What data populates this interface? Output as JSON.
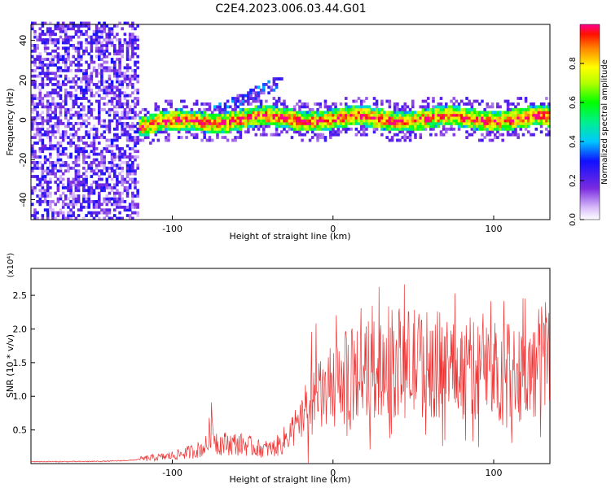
{
  "figure_title": "C2E4.2023.006.03.44.G01",
  "colors": {
    "snr_line": "#ee3333",
    "axis": "#000000",
    "background": "#ffffff"
  },
  "chart_data": [
    {
      "type": "heatmap",
      "xlabel": "Height of straight line (km)",
      "ylabel": "Frequency (Hz)",
      "xlim": [
        -188,
        135
      ],
      "ylim": [
        -50,
        48
      ],
      "x_ticks": [
        -100,
        0,
        100
      ],
      "x_tick_labels": [
        "-100",
        "0",
        "100"
      ],
      "y_ticks": [
        40,
        20,
        0,
        -20,
        -40
      ],
      "y_tick_labels": [
        "40",
        "20",
        "0",
        "-20",
        "-40"
      ],
      "colorbar": {
        "label": "Normalized spectral amplitude",
        "range": [
          0,
          1
        ],
        "ticks": [
          0.0,
          0.2,
          0.4,
          0.6,
          0.8
        ],
        "tick_labels": [
          "0.0",
          "0.2",
          "0.4",
          "0.6",
          "0.8"
        ],
        "colormap": "rainbow"
      },
      "features": [
        {
          "region": "noise",
          "x_range": [
            -188,
            -122
          ],
          "y_range": [
            -50,
            48
          ],
          "amplitude": [
            0.05,
            0.3
          ]
        },
        {
          "region": "trace",
          "x_range": [
            -122,
            135
          ],
          "center_freq_hz": 0,
          "width_hz": 10,
          "amplitude": [
            0.3,
            1.0
          ]
        },
        {
          "region": "diagonal-branch",
          "x_range": [
            -75,
            -30
          ],
          "freq_hz": [
            3,
            20
          ],
          "amplitude": [
            0.1,
            0.4
          ]
        }
      ],
      "grid": false
    },
    {
      "type": "line",
      "xlabel": "Height of straight line (km)",
      "ylabel": "SNR (10 * v/v)",
      "y_multiplier": "(x10⁴)",
      "xlim": [
        -188,
        135
      ],
      "ylim": [
        0,
        2.9
      ],
      "x_ticks": [
        -100,
        0,
        100
      ],
      "x_tick_labels": [
        "-100",
        "0",
        "100"
      ],
      "y_ticks": [
        0.5,
        1.0,
        1.5,
        2.0,
        2.5
      ],
      "y_tick_labels": [
        "0.5",
        "1.0",
        "1.5",
        "2.0",
        "2.5"
      ],
      "grid": false,
      "series": [
        {
          "x": [
            -188,
            -160,
            -140,
            -125,
            -115,
            -105,
            -95,
            -88,
            -82,
            -78,
            -76,
            -72,
            -65,
            -55,
            -45,
            -38,
            -32,
            -27,
            -24,
            -22,
            -20,
            -15,
            -10,
            -5,
            0,
            10,
            20,
            30,
            40,
            50,
            60,
            70,
            80,
            90,
            100,
            110,
            115,
            120,
            125,
            130,
            135
          ],
          "y": [
            0.03,
            0.03,
            0.035,
            0.05,
            0.08,
            0.1,
            0.14,
            0.18,
            0.22,
            0.28,
            0.6,
            0.3,
            0.3,
            0.28,
            0.22,
            0.22,
            0.3,
            0.45,
            0.55,
            0.5,
            0.65,
            0.9,
            0.95,
            1.05,
            1.15,
            1.3,
            1.38,
            1.45,
            1.5,
            1.5,
            1.48,
            1.45,
            1.42,
            1.4,
            1.38,
            1.38,
            1.4,
            1.3,
            1.35,
            1.6,
            1.7
          ],
          "noise_amplitude": "high for x > -25"
        }
      ]
    }
  ]
}
